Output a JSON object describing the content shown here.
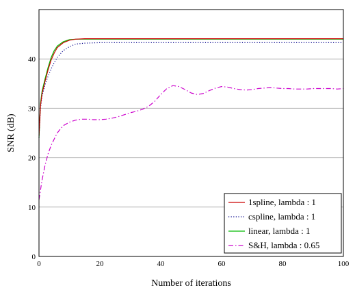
{
  "chart_data": {
    "type": "line",
    "title": "",
    "xlabel": "Number of iterations",
    "ylabel": "SNR (dB)",
    "xlim": [
      0,
      100
    ],
    "ylim": [
      0,
      50
    ],
    "xticks": [
      0,
      20,
      40,
      60,
      80,
      100
    ],
    "yticks": [
      0,
      10,
      20,
      30,
      40
    ],
    "grid": "horizontal",
    "legend_position": "bottom-right",
    "series": [
      {
        "name": "1spline, lambda : 1",
        "color": "#cc0000",
        "style": "solid",
        "x": [
          0,
          0.5,
          1,
          2,
          3,
          4,
          5,
          6,
          8,
          10,
          12,
          15,
          20,
          30,
          40,
          50,
          60,
          70,
          80,
          90,
          100
        ],
        "y": [
          24.5,
          30.5,
          33,
          35.5,
          37.8,
          39.8,
          41.2,
          42.3,
          43.3,
          43.8,
          44.0,
          44.1,
          44.1,
          44.1,
          44.1,
          44.1,
          44.1,
          44.1,
          44.1,
          44.1,
          44.1
        ]
      },
      {
        "name": "cspline, lambda : 1",
        "color": "#00008b",
        "style": "dotted",
        "x": [
          0,
          0.5,
          1,
          2,
          3,
          4,
          5,
          6,
          8,
          10,
          12,
          15,
          20,
          30,
          40,
          50,
          60,
          70,
          80,
          90,
          100
        ],
        "y": [
          24,
          30,
          32.5,
          34.8,
          36.5,
          38,
          39.3,
          40.3,
          41.7,
          42.5,
          43.0,
          43.2,
          43.3,
          43.3,
          43.3,
          43.3,
          43.3,
          43.3,
          43.3,
          43.3,
          43.3
        ]
      },
      {
        "name": "linear, lambda : 1",
        "color": "#00bb00",
        "style": "solid",
        "x": [
          0,
          0.5,
          1,
          2,
          3,
          4,
          5,
          6,
          8,
          10,
          12,
          15,
          20,
          30,
          40,
          50,
          60,
          70,
          80,
          90,
          100
        ],
        "y": [
          24,
          31,
          33.5,
          36,
          38.3,
          40.3,
          41.7,
          42.6,
          43.5,
          43.9,
          44.0,
          44.0,
          44.0,
          44.0,
          44.0,
          44.0,
          44.0,
          44.0,
          44.0,
          44.0,
          44.0
        ]
      },
      {
        "name": "S&H, lambda : 0.65",
        "color": "#cc00cc",
        "style": "dashdot",
        "x": [
          0,
          1,
          2,
          3,
          4,
          5,
          6,
          7,
          8,
          10,
          12,
          14,
          16,
          18,
          20,
          22,
          24,
          26,
          28,
          30,
          32,
          34,
          36,
          38,
          40,
          42,
          44,
          46,
          48,
          50,
          52,
          54,
          56,
          58,
          60,
          62,
          64,
          66,
          68,
          70,
          72,
          74,
          76,
          78,
          80,
          82,
          84,
          86,
          88,
          90,
          92,
          94,
          96,
          98,
          100
        ],
        "y": [
          11.5,
          15.5,
          18.5,
          20.8,
          22.5,
          23.8,
          25,
          25.8,
          26.5,
          27.2,
          27.6,
          27.8,
          27.8,
          27.7,
          27.7,
          27.8,
          28.0,
          28.3,
          28.7,
          29.1,
          29.4,
          29.8,
          30.4,
          31.4,
          32.8,
          34.0,
          34.6,
          34.4,
          33.8,
          33.1,
          32.8,
          33.0,
          33.6,
          34.1,
          34.4,
          34.3,
          34.0,
          33.8,
          33.7,
          33.8,
          34.0,
          34.1,
          34.2,
          34.1,
          34.0,
          34.0,
          33.9,
          33.9,
          33.9,
          34.0,
          34.0,
          34.0,
          34.0,
          33.9,
          34.0
        ]
      }
    ]
  }
}
